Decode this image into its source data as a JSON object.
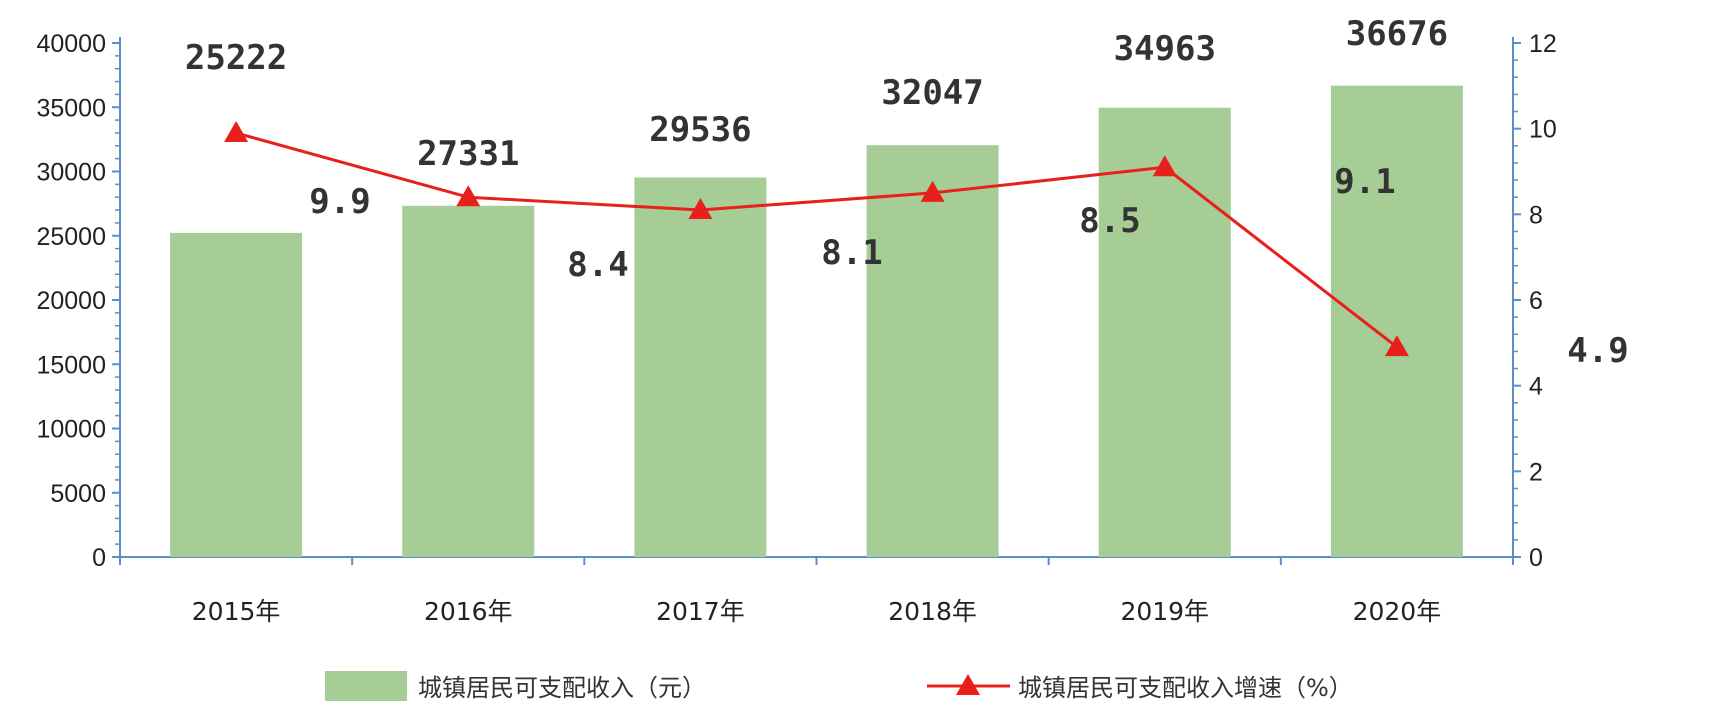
{
  "chart_data": {
    "type": "bar",
    "categories": [
      "2015年",
      "2016年",
      "2017年",
      "2018年",
      "2019年",
      "2020年"
    ],
    "series": [
      {
        "name": "城镇居民可支配收入（元）",
        "type": "bar",
        "axis": "left",
        "values": [
          25222,
          27331,
          29536,
          32047,
          34963,
          36676
        ],
        "color": "#a6cd96"
      },
      {
        "name": "城镇居民可支配收入增速（%）",
        "type": "line",
        "axis": "right",
        "values": [
          9.9,
          8.4,
          8.1,
          8.5,
          9.1,
          4.9
        ],
        "color": "#e8201c",
        "marker": "triangle"
      }
    ],
    "value_labels": {
      "bars": [
        "25222",
        "27331",
        "29536",
        "32047",
        "34963",
        "36676"
      ],
      "line": [
        "9.9",
        "8.4",
        "8.1",
        "8.5",
        "9.1",
        "4.9"
      ]
    },
    "title": "",
    "xlabel": "",
    "ylabel_left": "",
    "ylabel_right": "",
    "ylim_left": [
      0,
      40000
    ],
    "yticks_left": [
      "0",
      "5000",
      "10000",
      "15000",
      "20000",
      "25000",
      "30000",
      "35000",
      "40000"
    ],
    "ylim_right": [
      0,
      12
    ],
    "yticks_right": [
      "0",
      "2",
      "4",
      "6",
      "8",
      "10",
      "12"
    ],
    "grid": false,
    "legend_position": "bottom",
    "axis_color": "#5b8fc7"
  }
}
